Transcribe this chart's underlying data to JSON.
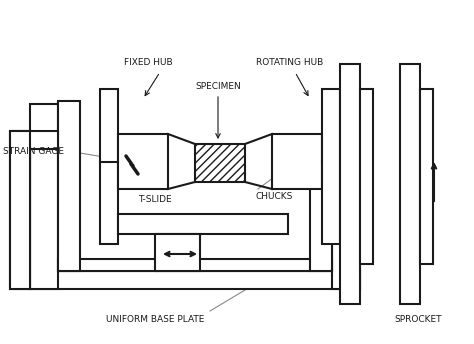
{
  "line_color": "#1a1a1a",
  "lw": 1.5,
  "lw_thin": 0.8,
  "labels": {
    "strain_gage": "STRAIN GAGE",
    "fixed_hub": "FIXED HUB",
    "rotating_hub": "ROTATING HUB",
    "specimen": "SPECIMEN",
    "t_slide": "T-SLIDE",
    "chucks": "CHUCKS",
    "base_plate": "UNIFORM BASE PLATE",
    "sprocket": "SPROCKET"
  },
  "font_size": 6.5
}
